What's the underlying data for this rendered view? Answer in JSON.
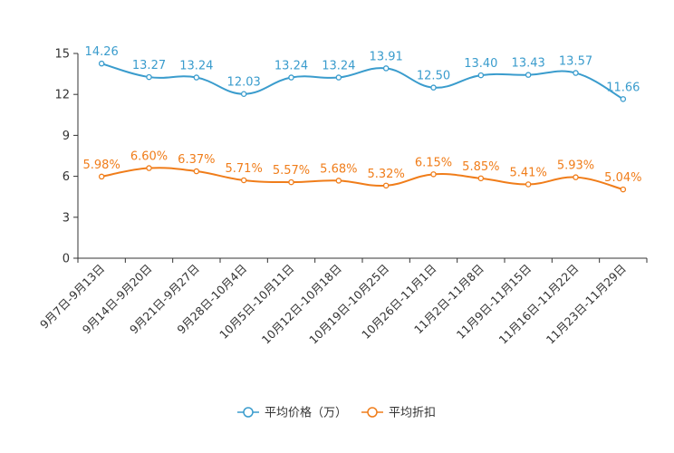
{
  "chart_data": {
    "type": "line",
    "title": "",
    "xlabel": "",
    "ylabel": "",
    "ylim": [
      0,
      15
    ],
    "yticks": [
      0,
      3,
      6,
      9,
      12,
      15
    ],
    "grid": false,
    "legend_position": "bottom-center",
    "categories": [
      "9月7日-9月13日",
      "9月14日-9月20日",
      "9月21日-9月27日",
      "9月28日-10月4日",
      "10月5日-10月11日",
      "10月12日-10月18日",
      "10月19日-10月25日",
      "10月26日-11月1日",
      "11月2日-11月8日",
      "11月9日-11月15日",
      "11月16日-11月22日",
      "11月23日-11月29日"
    ],
    "series": [
      {
        "name": "平均价格（万）",
        "color": "#3a9ccd",
        "values": [
          14.26,
          13.27,
          13.24,
          12.03,
          13.24,
          13.24,
          13.91,
          12.5,
          13.4,
          13.43,
          13.57,
          11.66
        ],
        "labels": [
          "14.26",
          "13.27",
          "13.24",
          "12.03",
          "13.24",
          "13.24",
          "13.91",
          "12.50",
          "13.40",
          "13.43",
          "13.57",
          "11.66"
        ]
      },
      {
        "name": "平均折扣",
        "color": "#f07d1a",
        "values": [
          5.98,
          6.6,
          6.37,
          5.71,
          5.57,
          5.68,
          5.32,
          6.15,
          5.85,
          5.41,
          5.93,
          5.04
        ],
        "labels": [
          "5.98%",
          "6.60%",
          "6.37%",
          "5.71%",
          "5.57%",
          "5.68%",
          "5.32%",
          "6.15%",
          "5.85%",
          "5.41%",
          "5.93%",
          "5.04%"
        ]
      }
    ]
  }
}
